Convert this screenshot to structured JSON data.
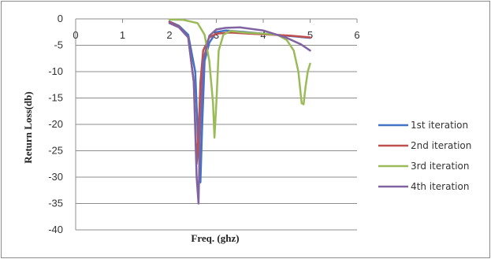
{
  "chart_data": {
    "type": "line",
    "title": "",
    "xlabel": "Freq. (ghz)",
    "ylabel": "Return Loss(db)",
    "xlim": [
      0,
      6
    ],
    "ylim": [
      -40,
      0
    ],
    "x_ticks": [
      0,
      1,
      2,
      3,
      4,
      5,
      6
    ],
    "y_ticks": [
      0,
      -5,
      -10,
      -15,
      -20,
      -25,
      -30,
      -35,
      -40
    ],
    "x_tick_labels": [
      "0",
      "1",
      "2",
      "3",
      "4",
      "5",
      "6"
    ],
    "y_tick_labels": [
      "0",
      "-5",
      "-10",
      "-15",
      "-20",
      "-25",
      "-30",
      "-35",
      "-40"
    ],
    "grid": "horizontal",
    "legend_position": "right",
    "series": [
      {
        "name": "1st iteration",
        "color": "#4472C4",
        "x": [
          2.0,
          2.2,
          2.4,
          2.55,
          2.62,
          2.66,
          2.7,
          2.75,
          2.85,
          3.0,
          3.2,
          3.5,
          4.0,
          4.5,
          5.0
        ],
        "y": [
          -0.5,
          -1.3,
          -3.0,
          -10.0,
          -25.0,
          -31.0,
          -20.0,
          -8.0,
          -4.5,
          -2.5,
          -2.2,
          -2.4,
          -2.8,
          -3.2,
          -3.6
        ]
      },
      {
        "name": "2nd iteration",
        "color": "#C0504D",
        "x": [
          2.0,
          2.2,
          2.4,
          2.52,
          2.58,
          2.62,
          2.66,
          2.72,
          2.85,
          3.0,
          3.3,
          3.7,
          4.2,
          4.6,
          5.0
        ],
        "y": [
          -0.6,
          -1.5,
          -3.5,
          -12.0,
          -27.5,
          -22.0,
          -12.0,
          -6.0,
          -3.5,
          -2.8,
          -2.6,
          -2.8,
          -3.0,
          -3.2,
          -3.5
        ]
      },
      {
        "name": "3rd iteration",
        "color": "#9BBB59",
        "x": [
          2.0,
          2.3,
          2.6,
          2.75,
          2.85,
          2.93,
          2.96,
          3.0,
          3.05,
          3.15,
          3.3,
          3.6,
          4.0,
          4.3,
          4.5,
          4.65,
          4.75,
          4.82,
          4.86,
          4.9,
          4.95,
          5.0
        ],
        "y": [
          -0.1,
          -0.2,
          -0.8,
          -3.0,
          -8.0,
          -16.0,
          -22.5,
          -16.0,
          -6.0,
          -3.0,
          -2.3,
          -2.6,
          -2.8,
          -3.0,
          -4.0,
          -6.0,
          -10.0,
          -16.0,
          -16.2,
          -13.0,
          -10.0,
          -8.5
        ]
      },
      {
        "name": "4th iteration",
        "color": "#8064A2",
        "x": [
          2.0,
          2.2,
          2.4,
          2.52,
          2.58,
          2.62,
          2.65,
          2.72,
          2.85,
          3.0,
          3.2,
          3.5,
          4.0,
          4.5,
          4.8,
          5.0
        ],
        "y": [
          -0.8,
          -1.6,
          -3.5,
          -12.0,
          -30.0,
          -35.0,
          -22.0,
          -8.0,
          -3.2,
          -2.0,
          -1.7,
          -1.6,
          -2.2,
          -3.6,
          -4.8,
          -6.0
        ]
      }
    ]
  }
}
